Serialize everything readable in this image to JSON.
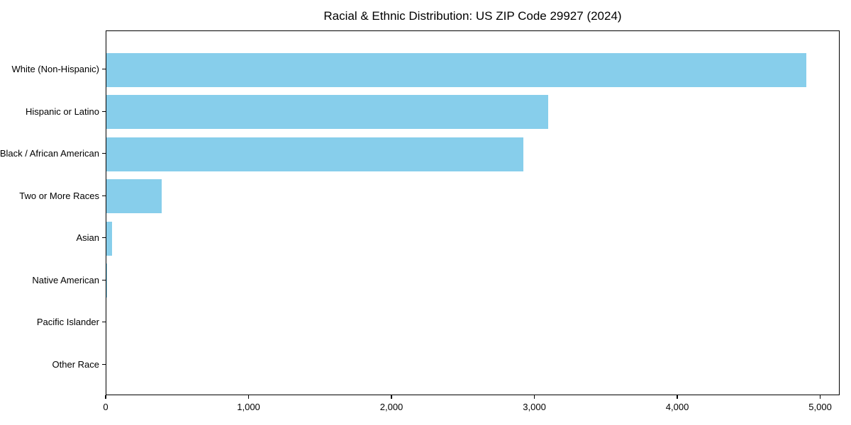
{
  "chart_data": {
    "type": "bar",
    "orientation": "horizontal",
    "title": "Racial & Ethnic Distribution: US ZIP Code 29927 (2024)",
    "categories": [
      "White (Non-Hispanic)",
      "Hispanic or Latino",
      "Black / African American",
      "Two or More Races",
      "Asian",
      "Native American",
      "Pacific Islander",
      "Other Race"
    ],
    "values": [
      4900,
      3090,
      2920,
      385,
      40,
      5,
      0,
      0
    ],
    "xlabel": "",
    "ylabel": "",
    "xlim": [
      0,
      5136
    ],
    "x_ticks": [
      0,
      1000,
      2000,
      3000,
      4000,
      5000
    ],
    "x_tick_labels": [
      "0",
      "1,000",
      "2,000",
      "3,000",
      "4,000",
      "5,000"
    ],
    "bar_color": "#87CEEB",
    "text_color": "#000000",
    "grid": false,
    "legend": null
  }
}
